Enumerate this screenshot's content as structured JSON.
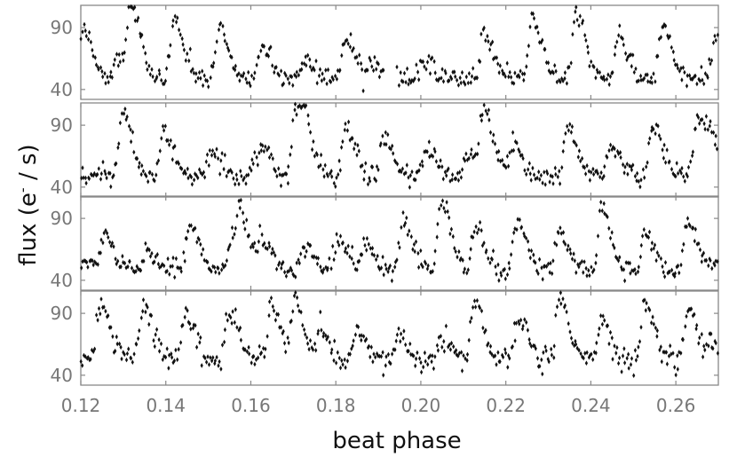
{
  "chart_data": {
    "type": "scatter",
    "xlabel": "beat phase",
    "ylabel_main": "flux (e",
    "ylabel_sup": "-",
    "ylabel_tail": " / s)",
    "xlim": [
      0.12,
      0.27
    ],
    "ylim": [
      32,
      108
    ],
    "x_ticks": [
      "0.12",
      "0.14",
      "0.16",
      "0.18",
      "0.20",
      "0.22",
      "0.24",
      "0.26"
    ],
    "y_ticks": [
      "40",
      "90"
    ],
    "panel_count": 4,
    "marker_color": "#111111",
    "panels": [
      {
        "baseline": 49,
        "noise": 4,
        "peaks": [
          {
            "x": 0.1205,
            "amp": 40
          },
          {
            "x": 0.1285,
            "amp": 18
          },
          {
            "x": 0.1318,
            "amp": 55
          },
          {
            "x": 0.1418,
            "amp": 48
          },
          {
            "x": 0.1525,
            "amp": 38
          },
          {
            "x": 0.1625,
            "amp": 26
          },
          {
            "x": 0.1728,
            "amp": 14
          },
          {
            "x": 0.1822,
            "amp": 33
          },
          {
            "x": 0.1885,
            "amp": 12
          },
          {
            "x": 0.2005,
            "amp": 12
          },
          {
            "x": 0.2148,
            "amp": 35
          },
          {
            "x": 0.2262,
            "amp": 48
          },
          {
            "x": 0.2365,
            "amp": 52
          },
          {
            "x": 0.2465,
            "amp": 36
          },
          {
            "x": 0.2568,
            "amp": 42
          },
          {
            "x": 0.2695,
            "amp": 40
          }
        ],
        "gaps": [
          [
            0.1915,
            0.1942
          ]
        ]
      },
      {
        "baseline": 49,
        "noise": 4,
        "peaks": [
          {
            "x": 0.1298,
            "amp": 50
          },
          {
            "x": 0.1395,
            "amp": 35
          },
          {
            "x": 0.1505,
            "amp": 20
          },
          {
            "x": 0.1605,
            "amp": 10
          },
          {
            "x": 0.1628,
            "amp": 18
          },
          {
            "x": 0.1705,
            "amp": 57
          },
          {
            "x": 0.1728,
            "amp": 25
          },
          {
            "x": 0.1822,
            "amp": 40
          },
          {
            "x": 0.1912,
            "amp": 30
          },
          {
            "x": 0.2012,
            "amp": 22
          },
          {
            "x": 0.2112,
            "amp": 20
          },
          {
            "x": 0.2148,
            "amp": 52
          },
          {
            "x": 0.2215,
            "amp": 25
          },
          {
            "x": 0.2345,
            "amp": 38
          },
          {
            "x": 0.2445,
            "amp": 25
          },
          {
            "x": 0.2545,
            "amp": 40
          },
          {
            "x": 0.2652,
            "amp": 50
          },
          {
            "x": 0.2685,
            "amp": 20
          }
        ],
        "gaps": []
      },
      {
        "baseline": 48,
        "noise": 4,
        "peaks": [
          {
            "x": 0.1208,
            "amp": 10
          },
          {
            "x": 0.1255,
            "amp": 28
          },
          {
            "x": 0.1355,
            "amp": 15
          },
          {
            "x": 0.1455,
            "amp": 38
          },
          {
            "x": 0.1555,
            "amp": 22
          },
          {
            "x": 0.1575,
            "amp": 38
          },
          {
            "x": 0.1625,
            "amp": 26
          },
          {
            "x": 0.1725,
            "amp": 20
          },
          {
            "x": 0.1805,
            "amp": 25
          },
          {
            "x": 0.1868,
            "amp": 20
          },
          {
            "x": 0.1958,
            "amp": 40
          },
          {
            "x": 0.2048,
            "amp": 55
          },
          {
            "x": 0.2128,
            "amp": 35
          },
          {
            "x": 0.2225,
            "amp": 38
          },
          {
            "x": 0.2325,
            "amp": 28
          },
          {
            "x": 0.2425,
            "amp": 50
          },
          {
            "x": 0.2528,
            "amp": 30
          },
          {
            "x": 0.2628,
            "amp": 38
          },
          {
            "x": 0.2685,
            "amp": 8
          }
        ],
        "gaps": []
      },
      {
        "baseline": 52,
        "noise": 5,
        "peaks": [
          {
            "x": 0.1245,
            "amp": 50
          },
          {
            "x": 0.1345,
            "amp": 48
          },
          {
            "x": 0.1445,
            "amp": 40
          },
          {
            "x": 0.1548,
            "amp": 42
          },
          {
            "x": 0.1648,
            "amp": 44
          },
          {
            "x": 0.1705,
            "amp": 50
          },
          {
            "x": 0.1762,
            "amp": 20
          },
          {
            "x": 0.1848,
            "amp": 25
          },
          {
            "x": 0.1945,
            "amp": 22
          },
          {
            "x": 0.2048,
            "amp": 20
          },
          {
            "x": 0.2125,
            "amp": 48
          },
          {
            "x": 0.2228,
            "amp": 38
          },
          {
            "x": 0.2325,
            "amp": 52
          },
          {
            "x": 0.2425,
            "amp": 30
          },
          {
            "x": 0.2528,
            "amp": 45
          },
          {
            "x": 0.2628,
            "amp": 40
          },
          {
            "x": 0.2685,
            "amp": 14
          }
        ],
        "gaps": []
      }
    ]
  }
}
